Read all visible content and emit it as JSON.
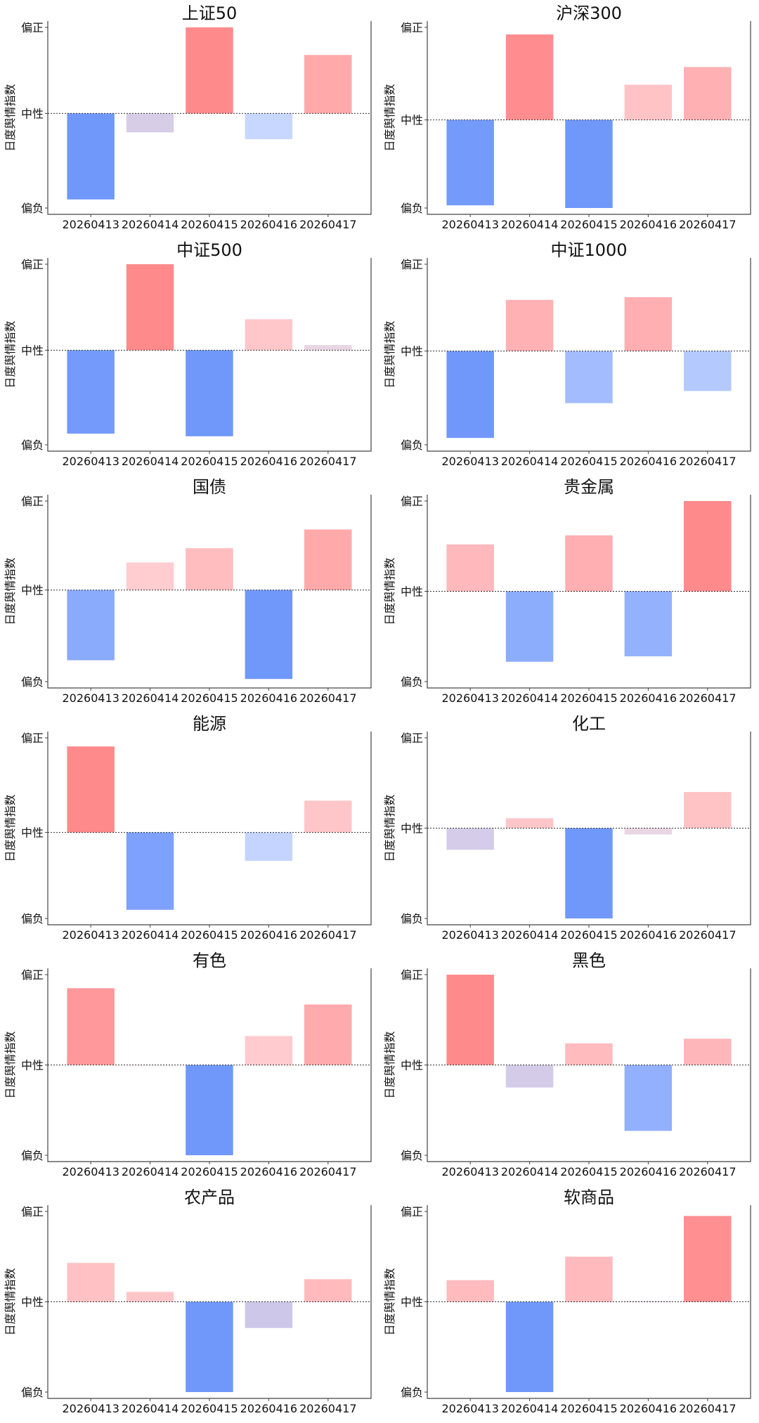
{
  "y_axis_label": "日度舆情指数",
  "y_tick_labels": {
    "top": "偏正",
    "mid": "中性",
    "bottom": "偏负"
  },
  "colors": {
    "strong_positive": "#ff8a8c",
    "strong_negative": "#7098fb",
    "neutral_line": "#333333",
    "axis": "#444444"
  },
  "chart_data": [
    {
      "type": "bar",
      "title": "上证50",
      "categories": [
        "20260413",
        "20260414",
        "20260415",
        "20260416",
        "20260417"
      ],
      "values": [
        -1.0,
        -0.22,
        1.0,
        -0.3,
        0.68
      ],
      "ylim": [
        -1.1,
        1.0
      ],
      "ylabel": "日度舆情指数",
      "xlabel": ""
    },
    {
      "type": "bar",
      "title": "沪深300",
      "categories": [
        "20260413",
        "20260414",
        "20260415",
        "20260416",
        "20260417"
      ],
      "values": [
        -0.97,
        0.97,
        -1.0,
        0.4,
        0.6
      ],
      "ylim": [
        -1.0,
        1.05
      ],
      "ylabel": "日度舆情指数",
      "xlabel": ""
    },
    {
      "type": "bar",
      "title": "中证500",
      "categories": [
        "20260413",
        "20260414",
        "20260415",
        "20260416",
        "20260417"
      ],
      "values": [
        -0.97,
        1.0,
        -1.0,
        0.36,
        0.06
      ],
      "ylim": [
        -1.1,
        1.0
      ],
      "ylabel": "日度舆情指数",
      "xlabel": ""
    },
    {
      "type": "bar",
      "title": "中证1000",
      "categories": [
        "20260413",
        "20260414",
        "20260415",
        "20260416",
        "20260417"
      ],
      "values": [
        -1.0,
        0.59,
        -0.6,
        0.62,
        -0.46
      ],
      "ylim": [
        -1.08,
        1.0
      ],
      "ylabel": "日度舆情指数",
      "xlabel": ""
    },
    {
      "type": "bar",
      "title": "国债",
      "categories": [
        "20260413",
        "20260414",
        "20260415",
        "20260416",
        "20260417"
      ],
      "values": [
        -0.79,
        0.31,
        0.47,
        -1.0,
        0.68
      ],
      "ylim": [
        -1.03,
        1.0
      ],
      "ylabel": "日度舆情指数",
      "xlabel": ""
    },
    {
      "type": "bar",
      "title": "贵金属",
      "categories": [
        "20260413",
        "20260414",
        "20260415",
        "20260416",
        "20260417"
      ],
      "values": [
        0.52,
        -0.78,
        0.62,
        -0.72,
        1.0
      ],
      "ylim": [
        -1.0,
        1.0
      ],
      "ylabel": "日度舆情指数",
      "xlabel": ""
    },
    {
      "type": "bar",
      "title": "能源",
      "categories": [
        "20260413",
        "20260414",
        "20260415",
        "20260416",
        "20260417"
      ],
      "values": [
        1.0,
        -0.9,
        0.0,
        -0.33,
        0.37
      ],
      "ylim": [
        -1.0,
        1.1
      ],
      "ylabel": "日度舆情指数",
      "xlabel": ""
    },
    {
      "type": "bar",
      "title": "化工",
      "categories": [
        "20260413",
        "20260414",
        "20260415",
        "20260416",
        "20260417"
      ],
      "values": [
        -0.24,
        0.11,
        -1.0,
        -0.07,
        0.4
      ],
      "ylim": [
        -1.0,
        1.0
      ],
      "ylabel": "日度舆情指数",
      "xlabel": ""
    },
    {
      "type": "bar",
      "title": "有色",
      "categories": [
        "20260413",
        "20260414",
        "20260415",
        "20260416",
        "20260417"
      ],
      "values": [
        0.85,
        0.0,
        -1.0,
        0.32,
        0.67
      ],
      "ylim": [
        -1.0,
        1.0
      ],
      "ylabel": "日度舆情指数",
      "xlabel": ""
    },
    {
      "type": "bar",
      "title": "黑色",
      "categories": [
        "20260413",
        "20260414",
        "20260415",
        "20260416",
        "20260417"
      ],
      "values": [
        1.0,
        -0.25,
        0.24,
        -0.73,
        0.29
      ],
      "ylim": [
        -1.0,
        1.0
      ],
      "ylabel": "日度舆情指数",
      "xlabel": ""
    },
    {
      "type": "bar",
      "title": "农产品",
      "categories": [
        "20260413",
        "20260414",
        "20260415",
        "20260416",
        "20260417"
      ],
      "values": [
        0.43,
        0.11,
        -1.0,
        -0.29,
        0.25
      ],
      "ylim": [
        -1.0,
        1.0
      ],
      "ylabel": "日度舆情指数",
      "xlabel": ""
    },
    {
      "type": "bar",
      "title": "软商品",
      "categories": [
        "20260413",
        "20260414",
        "20260415",
        "20260416",
        "20260417"
      ],
      "values": [
        0.24,
        -1.0,
        0.5,
        0.01,
        0.95
      ],
      "ylim": [
        -1.0,
        1.0
      ],
      "ylabel": "日度舆情指数",
      "xlabel": ""
    }
  ]
}
